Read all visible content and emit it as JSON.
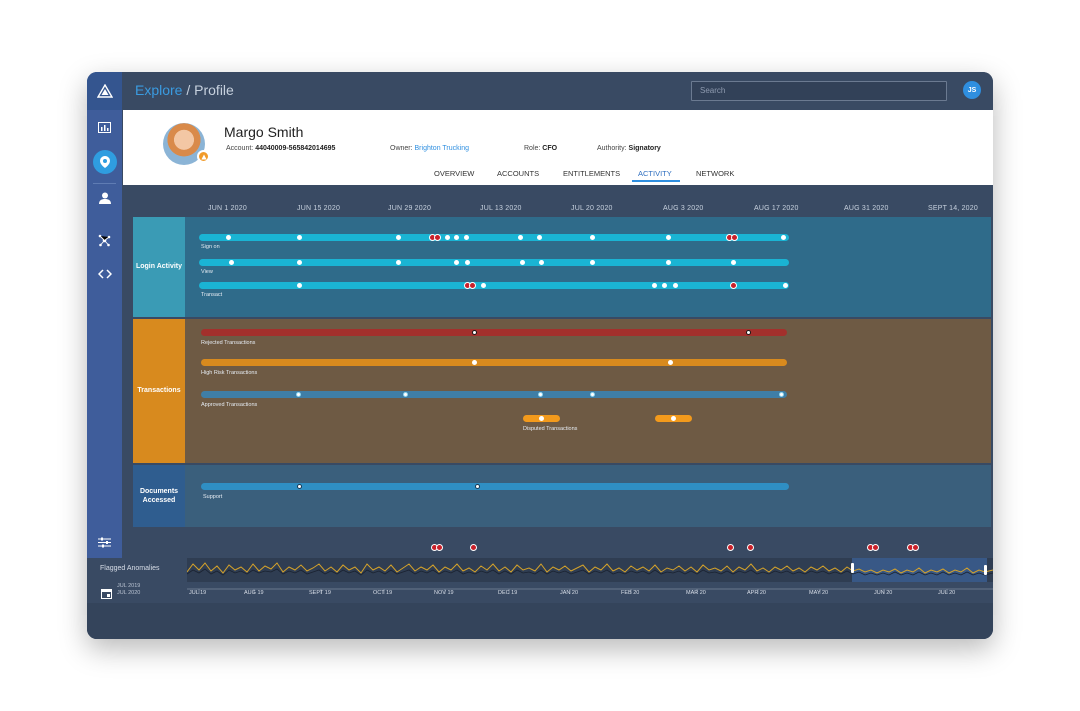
{
  "nav": {
    "breadcrumb_root": "Explore",
    "breadcrumb_sep": " / ",
    "breadcrumb_current": "Profile",
    "search_placeholder": "Search",
    "user_initials": "JS",
    "sidebar_icons": [
      "logo-icon",
      "dashboard-icon",
      "location-pin-icon",
      "user-icon",
      "network-icon",
      "code-icon"
    ]
  },
  "profile": {
    "name": "Margo Smith",
    "account_label": "Account:",
    "account_value": "44040009-565842014695",
    "owner_label": "Owner:",
    "owner_value": "Brighton Trucking",
    "role_label": "Role:",
    "role_value": "CFO",
    "authority_label": "Authority:",
    "authority_value": "Signatory"
  },
  "tabs": [
    "OVERVIEW",
    "ACCOUNTS",
    "ENTITLEMENTS",
    "ACTIVITY",
    "NETWORK"
  ],
  "active_tab": "ACTIVITY",
  "dates": [
    "JUN 1 2020",
    "JUN 15 2020",
    "JUN 29 2020",
    "JUL 13 2020",
    "JUL 20 2020",
    "AUG 3 2020",
    "AUG 17 2020",
    "AUG 31 2020",
    "SEPT 14, 2020"
  ],
  "bands": {
    "login": {
      "label": "Login Activity",
      "color": "#3a9bb5",
      "bg": "#2f6b8a",
      "tracks": [
        {
          "label": "Sign on",
          "color": "#1ab4d4"
        },
        {
          "label": "View",
          "color": "#1ab4d4"
        },
        {
          "label": "Transact",
          "color": "#1ab4d4"
        }
      ]
    },
    "transactions": {
      "label": "Transactions",
      "color": "#d88a1e",
      "bg": "#6e5a44",
      "tracks": [
        {
          "label": "Rejected Transactions",
          "color": "#a3302c"
        },
        {
          "label": "High Risk Transactions",
          "color": "#d88a1e"
        },
        {
          "label": "Approved Transactions",
          "color": "#3f7ea6"
        },
        {
          "label": "Disputed Transactions",
          "color": "#f39a1c"
        }
      ]
    },
    "documents": {
      "label": "Documents Accessed",
      "color": "#2f5d8f",
      "bg": "#3a5f7c",
      "tracks": [
        {
          "label": "Support",
          "color": "#2f8fc4"
        }
      ]
    }
  },
  "flagged": {
    "label": "Flagged Anomalies",
    "range_start": "JUL 2019",
    "range_end": "JUL 2020",
    "months": [
      "JUL 19",
      "AUG 19",
      "SEPT 19",
      "OCT 19",
      "NOV 19",
      "DEC 19",
      "JAN 20",
      "FEB 20",
      "MAR 20",
      "APR 20",
      "MAY 20",
      "JUN 20",
      "JUL 20"
    ]
  }
}
